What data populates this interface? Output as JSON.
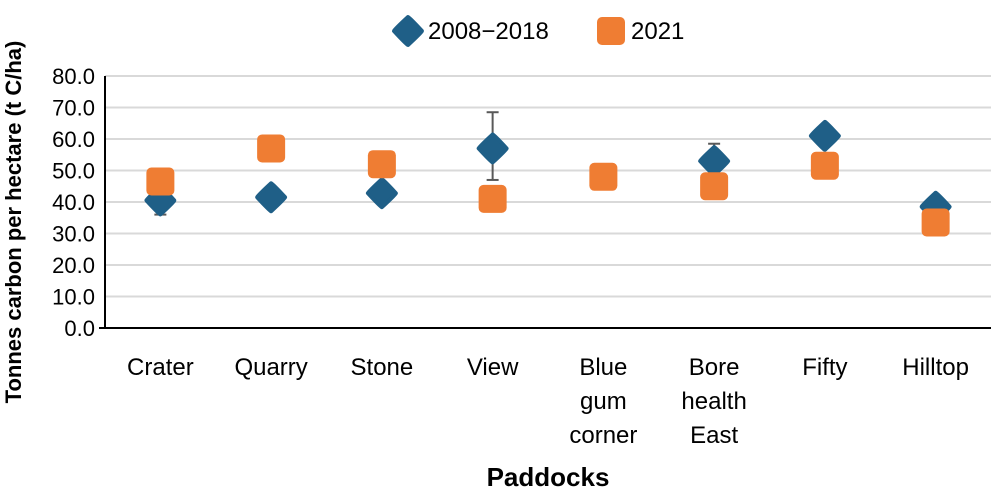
{
  "chart_data": {
    "type": "scatter",
    "title": "",
    "xlabel": "Paddocks",
    "ylabel": "Tonnes carbon per hectare (t C/ha)",
    "ylim": [
      0,
      80
    ],
    "y_ticks": [
      "0.0",
      "10.0",
      "20.0",
      "30.0",
      "40.0",
      "50.0",
      "60.0",
      "70.0",
      "80.0"
    ],
    "categories": [
      [
        "Crater"
      ],
      [
        "Quarry"
      ],
      [
        "Stone"
      ],
      [
        "View"
      ],
      [
        "Blue",
        "gum",
        "corner"
      ],
      [
        "Bore",
        "health",
        "East"
      ],
      [
        "Fifty"
      ],
      [
        "Hilltop"
      ]
    ],
    "grid": true,
    "legend_position": "top",
    "series": [
      {
        "name": "2008−2018",
        "marker": "diamond",
        "color": "#1f5f87",
        "values": [
          40.5,
          41.5,
          42.8,
          57.0,
          null,
          53.0,
          61.0,
          38.5
        ],
        "error_low": [
          4.5,
          null,
          null,
          10.0,
          null,
          null,
          null,
          null
        ],
        "error_high": [
          4.5,
          null,
          null,
          11.5,
          null,
          5.5,
          null,
          null
        ]
      },
      {
        "name": "2021",
        "marker": "square",
        "color": "#ef7d33",
        "values": [
          46.5,
          57.0,
          52.0,
          41.0,
          48.0,
          45.0,
          51.5,
          33.5
        ]
      }
    ],
    "error_bar_color": "#595959",
    "grid_color": "#d9d9d9"
  }
}
